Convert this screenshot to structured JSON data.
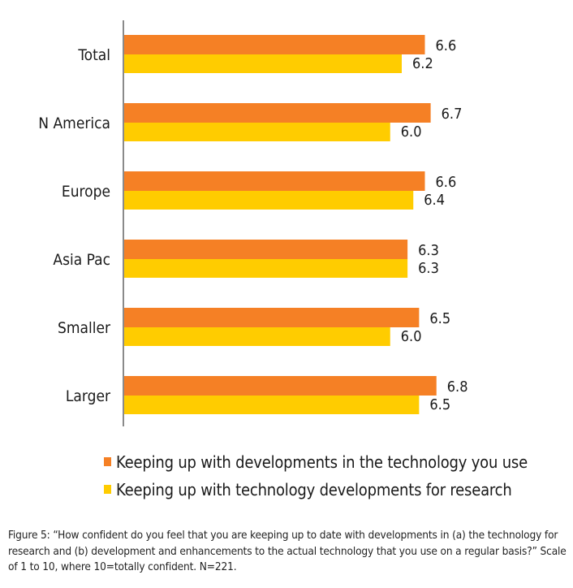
{
  "chart_data": {
    "type": "bar",
    "orientation": "horizontal",
    "title": "",
    "xlabel": "",
    "ylabel": "",
    "categories": [
      "Total",
      "N America",
      "Europe",
      "Asia Pac",
      "Smaller",
      "Larger"
    ],
    "series": [
      {
        "name": "Keeping up with developments in the technology you use",
        "color": "#f58025",
        "values": [
          6.6,
          6.7,
          6.6,
          6.3,
          6.5,
          6.8
        ]
      },
      {
        "name": "Keeping up with technology developments for research",
        "color": "#ffcc00",
        "values": [
          6.2,
          6.0,
          6.4,
          6.3,
          6.0,
          6.5
        ]
      }
    ],
    "value_labels": [
      [
        "6.6",
        "6.7",
        "6.6",
        "6.3",
        "6.5",
        "6.8"
      ],
      [
        "6.2",
        "6.0",
        "6.4",
        "6.3",
        "6.0",
        "6.5"
      ]
    ],
    "xlim": [
      1.4,
      10
    ],
    "grid": false,
    "x_axis_visible": false,
    "legend_position": "bottom"
  },
  "legend": {
    "items": [
      {
        "label": "Keeping up with developments in the technology you use",
        "color": "#f58025"
      },
      {
        "label": "Keeping up with technology developments for research",
        "color": "#ffcc00"
      }
    ]
  },
  "caption": "Figure 5: “How confident do you feel that you are keeping up to date with developments in (a) the technology for research and (b) development and enhancements to the actual technology that you use on a regular basis?” Scale of 1 to 10, where 10=totally confident. N=221."
}
